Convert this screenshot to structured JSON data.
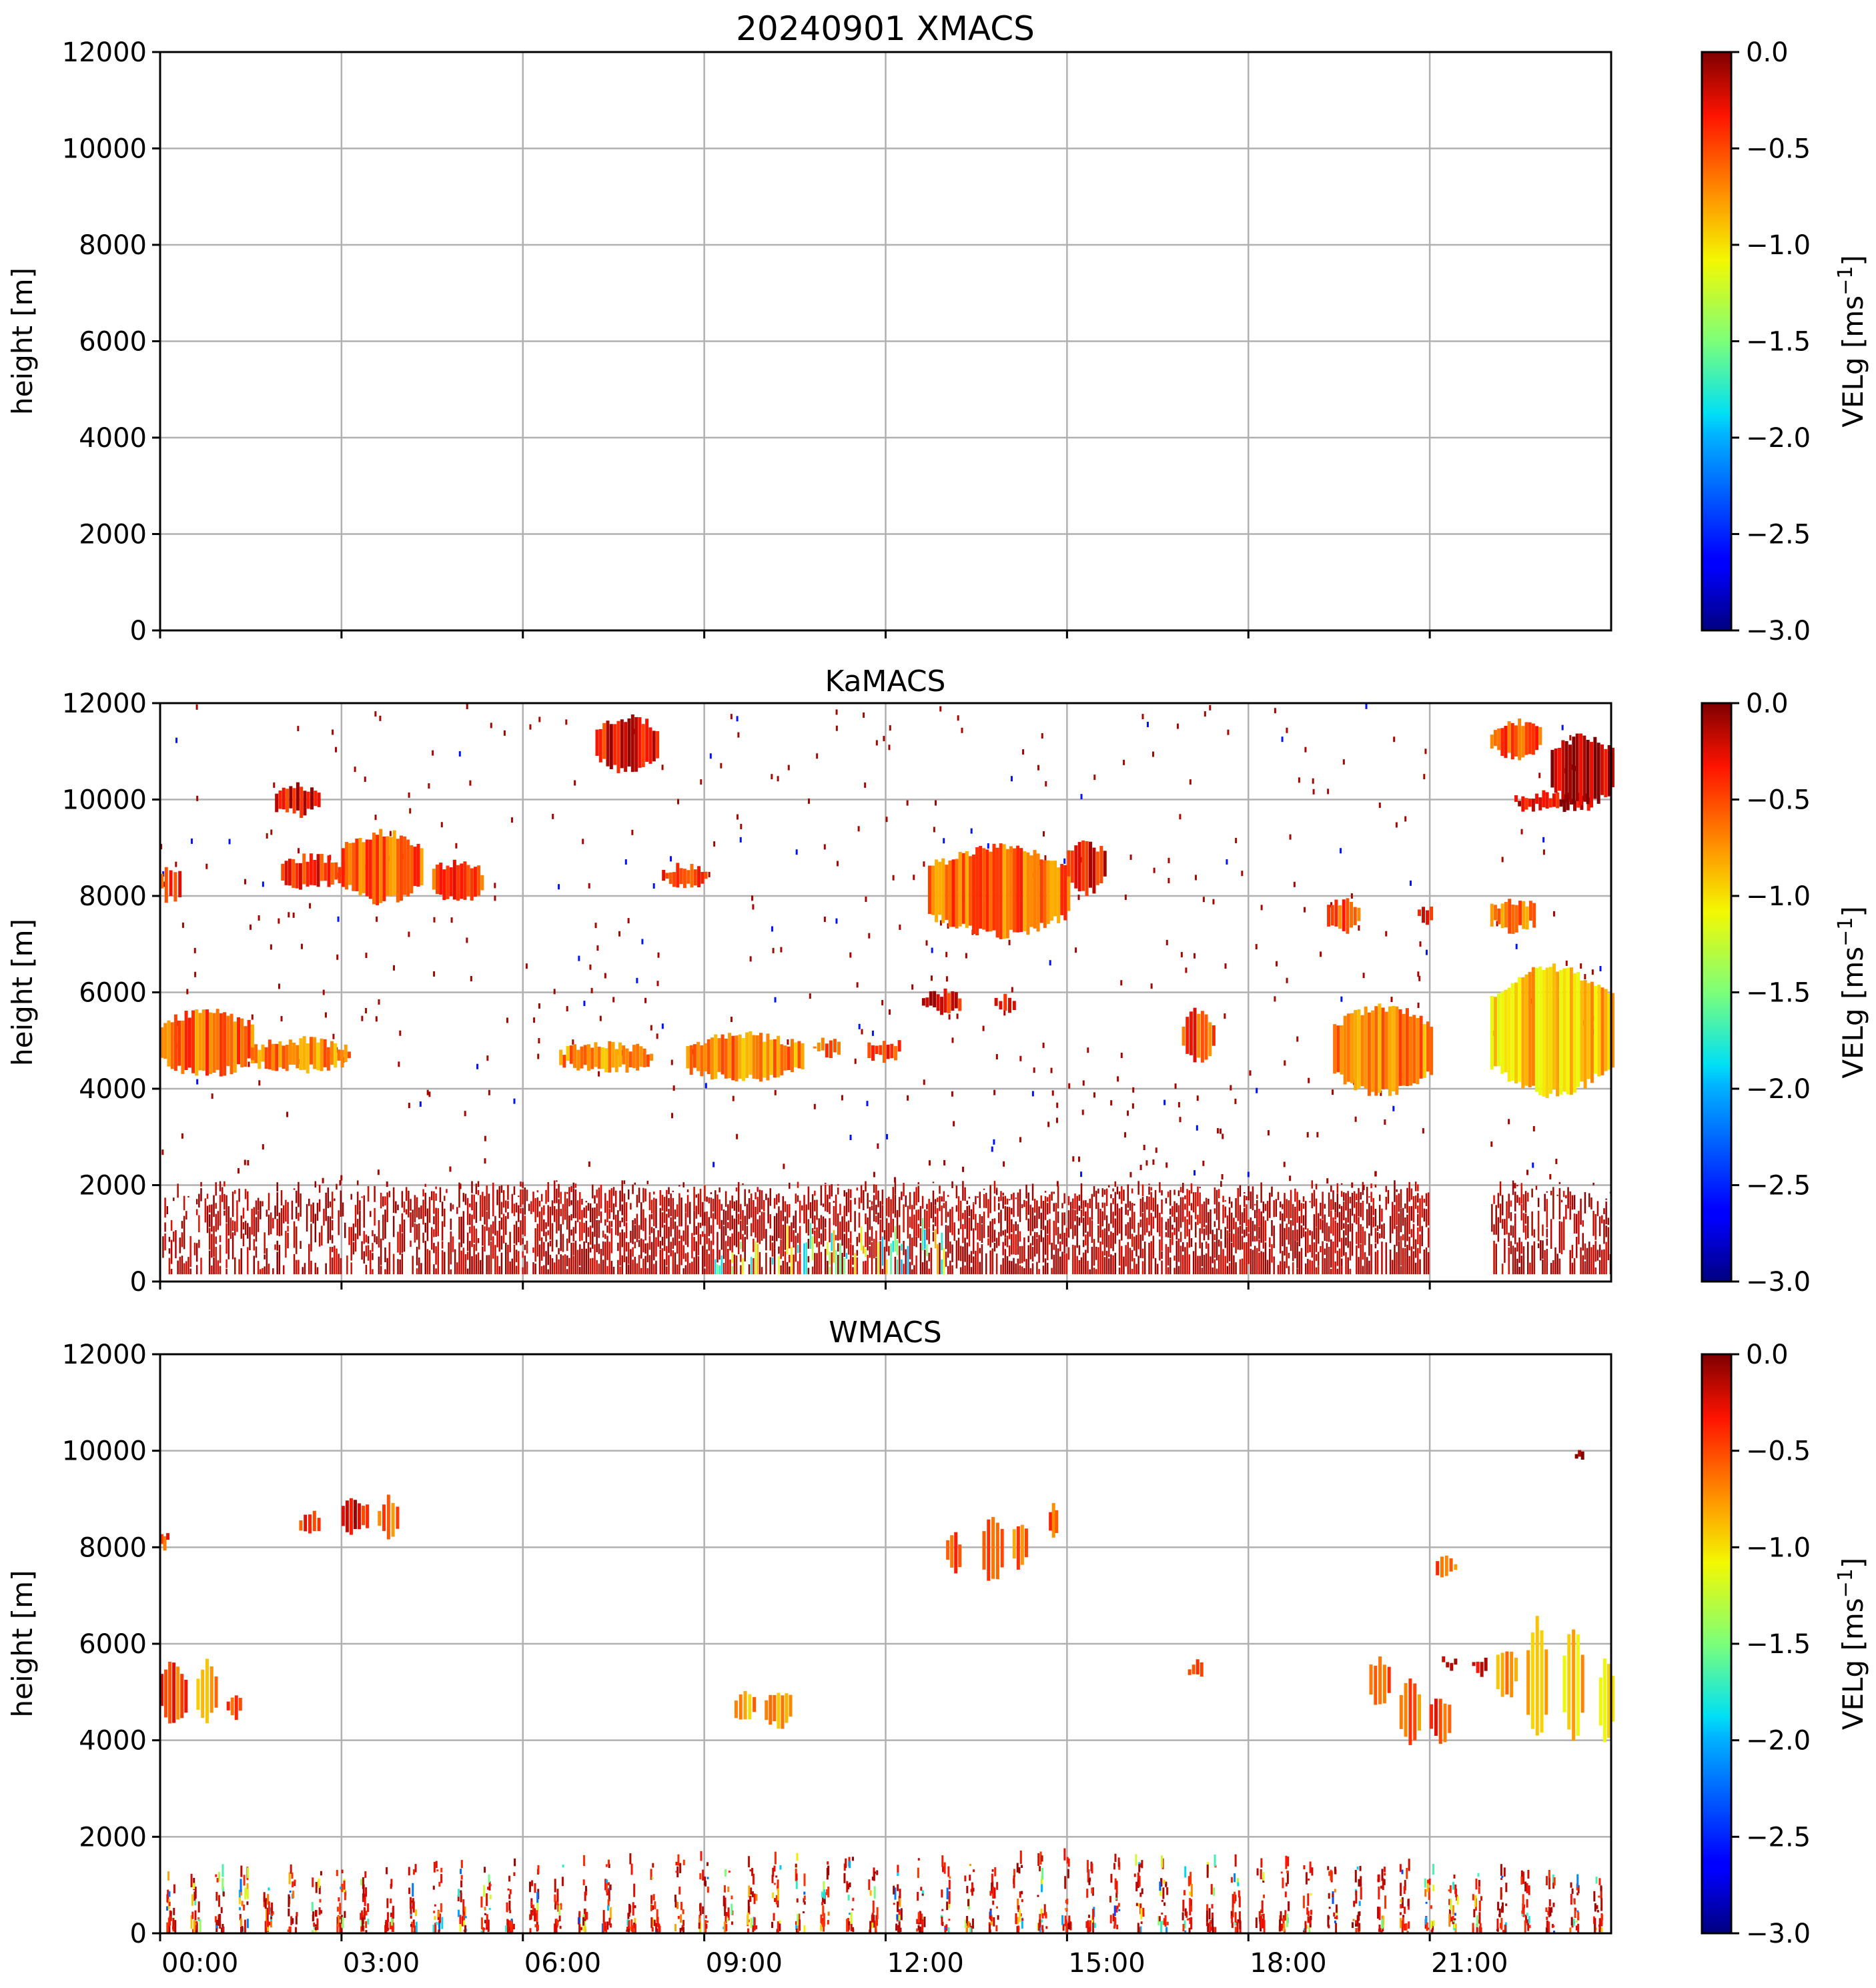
{
  "chart_data": [
    {
      "type": "heatmap",
      "panel": "XMACS",
      "title": "20240901 XMACS",
      "xlabel": "",
      "ylabel": "height [m]",
      "xlim_hours": [
        0,
        24
      ],
      "ylim": [
        0,
        12000
      ],
      "yticks": [
        "0",
        "2000",
        "4000",
        "6000",
        "8000",
        "10000",
        "12000"
      ],
      "xticks": [
        "00:00",
        "03:00",
        "06:00",
        "09:00",
        "12:00",
        "15:00",
        "18:00",
        "21:00"
      ],
      "xtick_labels_visible": false,
      "grid": true,
      "colorbar": {
        "label_main": "VELg [ms",
        "label_sup": "−1",
        "label_end": "]",
        "range": [
          -3.0,
          0.0
        ],
        "ticks": [
          "0.0",
          "−0.5",
          "−1.0",
          "−1.5",
          "−2.0",
          "−2.5",
          "−3.0"
        ],
        "colormap": "jet_r"
      },
      "clouds": [],
      "clutter": null
    },
    {
      "type": "heatmap",
      "panel": "KaMACS",
      "title": "KaMACS",
      "xlabel": "",
      "ylabel": "height [m]",
      "xlim_hours": [
        0,
        24
      ],
      "ylim": [
        0,
        12000
      ],
      "yticks": [
        "0",
        "2000",
        "4000",
        "6000",
        "8000",
        "10000",
        "12000"
      ],
      "xticks": [
        "00:00",
        "03:00",
        "06:00",
        "09:00",
        "12:00",
        "15:00",
        "18:00",
        "21:00"
      ],
      "xtick_labels_visible": false,
      "grid": true,
      "colorbar": {
        "label_main": "VELg [ms",
        "label_sup": "−1",
        "label_end": "]",
        "range": [
          -3.0,
          0.0
        ],
        "ticks": [
          "0.0",
          "−0.5",
          "−1.0",
          "−1.5",
          "−2.0",
          "−2.5",
          "−3.0"
        ],
        "colormap": "jet_r"
      },
      "clouds": [
        {
          "t0": 0.0,
          "t1": 0.3,
          "base": 7900,
          "top": 8600,
          "vel": -0.4
        },
        {
          "t0": 1.9,
          "t1": 2.6,
          "base": 9700,
          "top": 10300,
          "vel": -0.3
        },
        {
          "t0": 2.0,
          "t1": 3.0,
          "base": 8200,
          "top": 8800,
          "vel": -0.4
        },
        {
          "t0": 3.0,
          "t1": 4.3,
          "base": 7900,
          "top": 9300,
          "vel": -0.6
        },
        {
          "t0": 4.5,
          "t1": 5.3,
          "base": 7900,
          "top": 8700,
          "vel": -0.5
        },
        {
          "t0": 7.2,
          "t1": 8.2,
          "base": 10600,
          "top": 11700,
          "vel": -0.3
        },
        {
          "t0": 8.3,
          "t1": 9.0,
          "base": 8200,
          "top": 8600,
          "vel": -0.4
        },
        {
          "t0": 0.0,
          "t1": 1.5,
          "base": 4300,
          "top": 5600,
          "vel": -0.6
        },
        {
          "t0": 1.5,
          "t1": 3.1,
          "base": 4400,
          "top": 5000,
          "vel": -0.7
        },
        {
          "t0": 6.6,
          "t1": 8.1,
          "base": 4400,
          "top": 4900,
          "vel": -0.7
        },
        {
          "t0": 8.7,
          "t1": 10.6,
          "base": 4200,
          "top": 5100,
          "vel": -0.7
        },
        {
          "t0": 10.8,
          "t1": 11.2,
          "base": 4700,
          "top": 5000,
          "vel": -0.5
        },
        {
          "t0": 11.7,
          "t1": 12.2,
          "base": 4600,
          "top": 5000,
          "vel": -0.5
        },
        {
          "t0": 12.6,
          "t1": 13.2,
          "base": 5600,
          "top": 6000,
          "vel": -0.3
        },
        {
          "t0": 13.8,
          "t1": 14.1,
          "base": 5600,
          "top": 5900,
          "vel": -0.3
        },
        {
          "t0": 12.7,
          "t1": 15.0,
          "base": 7200,
          "top": 9000,
          "vel": -0.6
        },
        {
          "t0": 15.0,
          "t1": 15.6,
          "base": 8100,
          "top": 9100,
          "vel": -0.3
        },
        {
          "t0": 16.9,
          "t1": 17.4,
          "base": 4600,
          "top": 5600,
          "vel": -0.5
        },
        {
          "t0": 19.4,
          "t1": 21.0,
          "base": 3900,
          "top": 5700,
          "vel": -0.7
        },
        {
          "t0": 19.3,
          "t1": 19.8,
          "base": 7300,
          "top": 7900,
          "vel": -0.5
        },
        {
          "t0": 20.8,
          "t1": 21.0,
          "base": 7400,
          "top": 7800,
          "vel": -0.4
        },
        {
          "t0": 22.0,
          "t1": 24.0,
          "base": 3900,
          "top": 6500,
          "vel": -0.9
        },
        {
          "t0": 22.0,
          "t1": 22.7,
          "base": 7300,
          "top": 7900,
          "vel": -0.6
        },
        {
          "t0": 22.0,
          "t1": 22.8,
          "base": 10900,
          "top": 11600,
          "vel": -0.5
        },
        {
          "t0": 22.4,
          "t1": 23.6,
          "base": 9800,
          "top": 10100,
          "vel": -0.2
        },
        {
          "t0": 23.0,
          "t1": 24.0,
          "base": 9900,
          "top": 11300,
          "vel": -0.1
        }
      ],
      "clutter": {
        "base": 150,
        "top": 2000,
        "gaps": [
          [
            21.0,
            22.0
          ]
        ],
        "vel": -0.1
      }
    },
    {
      "type": "heatmap",
      "panel": "WMACS",
      "title": "WMACS",
      "xlabel": "",
      "ylabel": "height [m]",
      "xlim_hours": [
        0,
        24
      ],
      "ylim": [
        0,
        12000
      ],
      "yticks": [
        "0",
        "2000",
        "4000",
        "6000",
        "8000",
        "10000",
        "12000"
      ],
      "xticks": [
        "00:00",
        "03:00",
        "06:00",
        "09:00",
        "12:00",
        "15:00",
        "18:00",
        "21:00"
      ],
      "xtick_labels_visible": true,
      "grid": true,
      "colorbar": {
        "label_main": "VELg [ms",
        "label_sup": "−1",
        "label_end": "]",
        "range": [
          -3.0,
          0.0
        ],
        "ticks": [
          "0.0",
          "−0.5",
          "−1.0",
          "−1.5",
          "−2.0",
          "−2.5",
          "−3.0"
        ],
        "colormap": "jet_r"
      },
      "clouds": [
        {
          "t0": 0.0,
          "t1": 0.1,
          "base": 8000,
          "top": 8300,
          "vel": -0.5
        },
        {
          "t0": 2.3,
          "t1": 2.6,
          "base": 8300,
          "top": 8700,
          "vel": -0.4
        },
        {
          "t0": 3.0,
          "t1": 3.4,
          "base": 8300,
          "top": 9000,
          "vel": -0.3
        },
        {
          "t0": 3.6,
          "t1": 3.9,
          "base": 8200,
          "top": 9000,
          "vel": -0.6
        },
        {
          "t0": 0.0,
          "t1": 0.4,
          "base": 4400,
          "top": 5600,
          "vel": -0.5
        },
        {
          "t0": 0.6,
          "t1": 0.9,
          "base": 4400,
          "top": 5600,
          "vel": -0.8
        },
        {
          "t0": 1.1,
          "t1": 1.3,
          "base": 4500,
          "top": 5000,
          "vel": -0.5
        },
        {
          "t0": 9.5,
          "t1": 9.8,
          "base": 4400,
          "top": 5000,
          "vel": -0.8
        },
        {
          "t0": 10.0,
          "t1": 10.4,
          "base": 4300,
          "top": 5000,
          "vel": -0.8
        },
        {
          "t0": 13.0,
          "t1": 13.2,
          "base": 7500,
          "top": 8300,
          "vel": -0.5
        },
        {
          "t0": 13.6,
          "t1": 13.9,
          "base": 7300,
          "top": 8700,
          "vel": -0.6
        },
        {
          "t0": 14.1,
          "t1": 14.3,
          "base": 7600,
          "top": 8500,
          "vel": -0.6
        },
        {
          "t0": 14.7,
          "t1": 14.8,
          "base": 8200,
          "top": 8900,
          "vel": -0.5
        },
        {
          "t0": 17.0,
          "t1": 17.2,
          "base": 5300,
          "top": 5600,
          "vel": -0.3
        },
        {
          "t0": 20.0,
          "t1": 20.3,
          "base": 4700,
          "top": 5700,
          "vel": -0.5
        },
        {
          "t0": 20.5,
          "t1": 20.8,
          "base": 3900,
          "top": 5300,
          "vel": -0.6
        },
        {
          "t0": 21.0,
          "t1": 21.3,
          "base": 4000,
          "top": 4900,
          "vel": -0.5
        },
        {
          "t0": 21.2,
          "t1": 21.4,
          "base": 5500,
          "top": 5700,
          "vel": -0.1
        },
        {
          "t0": 21.1,
          "t1": 21.4,
          "base": 7400,
          "top": 7800,
          "vel": -0.6
        },
        {
          "t0": 21.7,
          "t1": 21.9,
          "base": 5400,
          "top": 5700,
          "vel": -0.1
        },
        {
          "t0": 22.1,
          "t1": 22.4,
          "base": 4900,
          "top": 5900,
          "vel": -0.7
        },
        {
          "t0": 22.6,
          "t1": 22.9,
          "base": 4000,
          "top": 6500,
          "vel": -0.9
        },
        {
          "t0": 23.2,
          "t1": 23.5,
          "base": 4000,
          "top": 6300,
          "vel": -0.9
        },
        {
          "t0": 23.8,
          "t1": 24.0,
          "base": 3900,
          "top": 5700,
          "vel": -0.9
        },
        {
          "t0": 23.4,
          "t1": 23.5,
          "base": 9800,
          "top": 9950,
          "vel": -0.1
        }
      ],
      "clutter": {
        "base": 0,
        "top": 1400,
        "periodic_hours": 0.4,
        "vel": -0.1
      }
    }
  ]
}
